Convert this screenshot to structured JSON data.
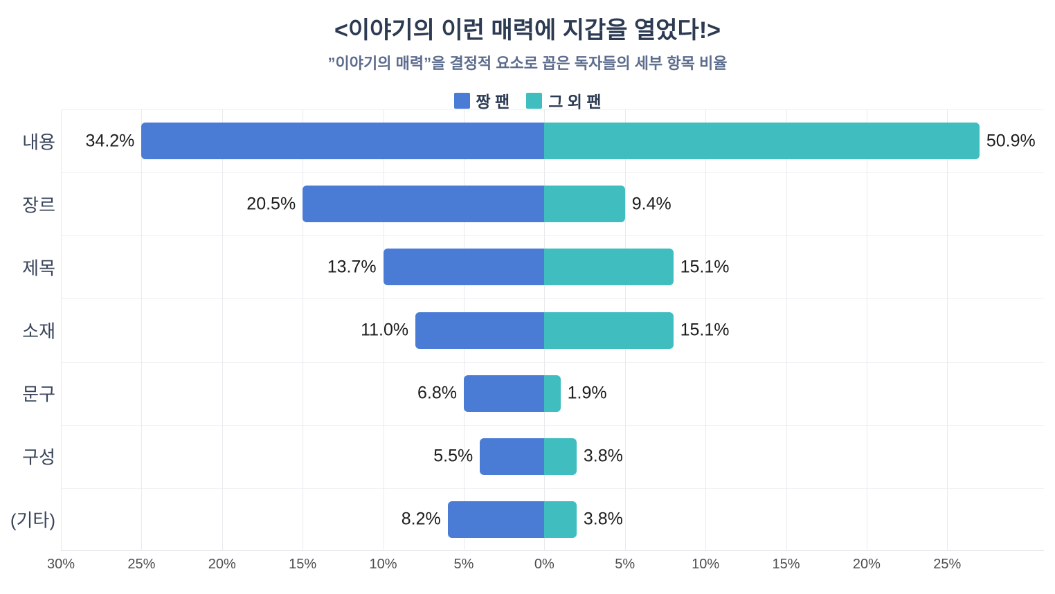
{
  "chart_data": {
    "type": "bar",
    "orientation": "horizontal-diverging",
    "title": "<이야기의 이런 매력에 지갑을 열었다!>",
    "subtitle": "”이야기의 매력”을 결정적 요소로 꼽은 독자들의 세부 항목 비율",
    "categories": [
      "내용",
      "장르",
      "제목",
      "소재",
      "문구",
      "구성",
      "(기타)"
    ],
    "series": [
      {
        "name": "짱 팬",
        "side": "left",
        "color": "#4a7cd6",
        "values": [
          34.2,
          20.5,
          13.7,
          11.0,
          6.8,
          5.5,
          8.2
        ],
        "labels": [
          "34.2%",
          "20.5%",
          "13.7%",
          "11.0%",
          "6.8%",
          "5.5%",
          "8.2%"
        ],
        "bar_axis_units": [
          25,
          15,
          10,
          8,
          5,
          4,
          6
        ]
      },
      {
        "name": "그 외 팬",
        "side": "right",
        "color": "#3fbdbf",
        "values": [
          50.9,
          9.4,
          15.1,
          15.1,
          1.9,
          3.8,
          3.8
        ],
        "labels": [
          "50.9%",
          "9.4%",
          "15.1%",
          "15.1%",
          "1.9%",
          "3.8%",
          "3.8%"
        ],
        "bar_axis_units": [
          27,
          5,
          8,
          8,
          1,
          2,
          2
        ]
      }
    ],
    "legend": {
      "position": "top",
      "items": [
        {
          "label": "짱 팬",
          "color": "#4a7cd6"
        },
        {
          "label": "그 외 팬",
          "color": "#3fbdbf"
        }
      ]
    },
    "x_axis": {
      "min": -30,
      "max": 31,
      "tick_step": 5,
      "tick_units": [
        -30,
        -25,
        -20,
        -15,
        -10,
        -5,
        0,
        5,
        10,
        15,
        20,
        25
      ],
      "ticks": [
        "30%",
        "25%",
        "20%",
        "15%",
        "10%",
        "5%",
        "0%",
        "5%",
        "10%",
        "15%",
        "20%",
        "25%"
      ]
    },
    "grid": true,
    "background": "#ffffff",
    "colors": {
      "title": "#2c3a52",
      "subtitle": "#5c6c8d",
      "category_label": "#39445a",
      "value_label": "#1d1d1d",
      "tick_label": "#4c4c4c",
      "gridline": "#e8eaee"
    }
  }
}
